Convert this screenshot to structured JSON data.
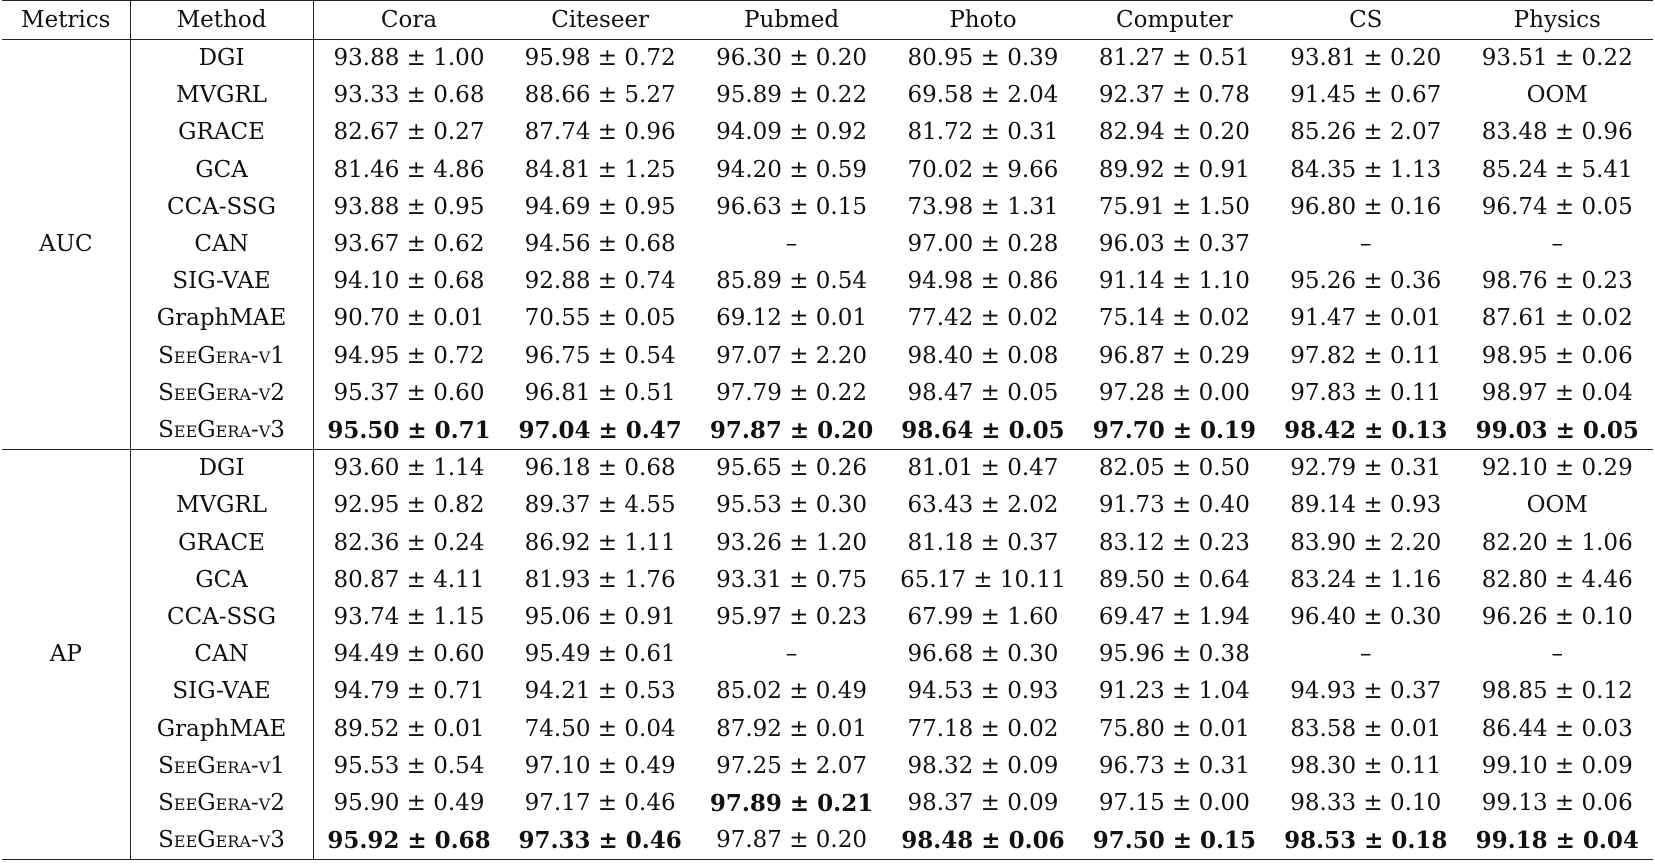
{
  "table": {
    "headers": [
      "Metrics",
      "Method",
      "Cora",
      "Citeseer",
      "Pubmed",
      "Photo",
      "Computer",
      "CS",
      "Physics"
    ],
    "groups": [
      {
        "metric": "AUC",
        "rows": [
          {
            "method": "DGI",
            "values": [
              "93.88 ± 1.00",
              "95.98 ± 0.72",
              "96.30 ± 0.20",
              "80.95 ± 0.39",
              "81.27 ± 0.51",
              "93.81 ± 0.20",
              "93.51 ± 0.22"
            ],
            "bold": []
          },
          {
            "method": "MVGRL",
            "values": [
              "93.33 ± 0.68",
              "88.66 ± 5.27",
              "95.89 ± 0.22",
              "69.58 ± 2.04",
              "92.37 ± 0.78",
              "91.45 ± 0.67",
              "OOM"
            ],
            "bold": []
          },
          {
            "method": "GRACE",
            "values": [
              "82.67 ± 0.27",
              "87.74 ± 0.96",
              "94.09 ± 0.92",
              "81.72 ± 0.31",
              "82.94 ± 0.20",
              "85.26 ± 2.07",
              "83.48 ± 0.96"
            ],
            "bold": []
          },
          {
            "method": "GCA",
            "values": [
              "81.46 ± 4.86",
              "84.81 ± 1.25",
              "94.20 ± 0.59",
              "70.02 ± 9.66",
              "89.92 ± 0.91",
              "84.35 ± 1.13",
              "85.24 ± 5.41"
            ],
            "bold": []
          },
          {
            "method": "CCA-SSG",
            "values": [
              "93.88 ± 0.95",
              "94.69 ± 0.95",
              "96.63 ± 0.15",
              "73.98 ± 1.31",
              "75.91 ± 1.50",
              "96.80 ± 0.16",
              "96.74 ± 0.05"
            ],
            "bold": []
          },
          {
            "method": "CAN",
            "values": [
              "93.67 ± 0.62",
              "94.56 ± 0.68",
              "–",
              "97.00 ± 0.28",
              "96.03 ± 0.37",
              "–",
              "–"
            ],
            "bold": []
          },
          {
            "method": "SIG-VAE",
            "values": [
              "94.10 ± 0.68",
              "92.88 ± 0.74",
              "85.89 ± 0.54",
              "94.98 ± 0.86",
              "91.14 ± 1.10",
              "95.26 ± 0.36",
              "98.76 ± 0.23"
            ],
            "bold": []
          },
          {
            "method": "GraphMAE",
            "values": [
              "90.70 ± 0.01",
              "70.55 ± 0.05",
              "69.12 ± 0.01",
              "77.42 ± 0.02",
              "75.14 ± 0.02",
              "91.47 ± 0.01",
              "87.61 ± 0.02"
            ],
            "bold": []
          },
          {
            "method": "SeeGera-v1",
            "values": [
              "94.95 ± 0.72",
              "96.75 ± 0.54",
              "97.07 ± 2.20",
              "98.40 ± 0.08",
              "96.87 ± 0.29",
              "97.82 ± 0.11",
              "98.95 ± 0.06"
            ],
            "bold": []
          },
          {
            "method": "SeeGera-v2",
            "values": [
              "95.37 ± 0.60",
              "96.81 ± 0.51",
              "97.79 ± 0.22",
              "98.47 ± 0.05",
              "97.28 ± 0.00",
              "97.83 ± 0.11",
              "98.97 ± 0.04"
            ],
            "bold": []
          },
          {
            "method": "SeeGera-v3",
            "values": [
              "95.50 ± 0.71",
              "97.04 ± 0.47",
              "97.87 ± 0.20",
              "98.64 ± 0.05",
              "97.70 ± 0.19",
              "98.42 ± 0.13",
              "99.03 ± 0.05"
            ],
            "bold": [
              0,
              1,
              2,
              3,
              4,
              5,
              6
            ]
          }
        ]
      },
      {
        "metric": "AP",
        "rows": [
          {
            "method": "DGI",
            "values": [
              "93.60 ± 1.14",
              "96.18 ± 0.68",
              "95.65 ± 0.26",
              "81.01 ± 0.47",
              "82.05 ± 0.50",
              "92.79 ± 0.31",
              "92.10 ± 0.29"
            ],
            "bold": []
          },
          {
            "method": "MVGRL",
            "values": [
              "92.95 ± 0.82",
              "89.37 ± 4.55",
              "95.53 ± 0.30",
              "63.43 ± 2.02",
              "91.73 ± 0.40",
              "89.14 ± 0.93",
              "OOM"
            ],
            "bold": []
          },
          {
            "method": "GRACE",
            "values": [
              "82.36 ± 0.24",
              "86.92 ± 1.11",
              "93.26 ± 1.20",
              "81.18 ± 0.37",
              "83.12 ± 0.23",
              "83.90 ± 2.20",
              "82.20 ± 1.06"
            ],
            "bold": []
          },
          {
            "method": "GCA",
            "values": [
              "80.87 ± 4.11",
              "81.93 ± 1.76",
              "93.31 ± 0.75",
              "65.17 ± 10.11",
              "89.50 ± 0.64",
              "83.24 ± 1.16",
              "82.80 ± 4.46"
            ],
            "bold": []
          },
          {
            "method": "CCA-SSG",
            "values": [
              "93.74 ± 1.15",
              "95.06 ± 0.91",
              "95.97 ± 0.23",
              "67.99 ± 1.60",
              "69.47 ± 1.94",
              "96.40 ± 0.30",
              "96.26 ± 0.10"
            ],
            "bold": []
          },
          {
            "method": "CAN",
            "values": [
              "94.49 ± 0.60",
              "95.49 ± 0.61",
              "–",
              "96.68 ± 0.30",
              "95.96 ± 0.38",
              "–",
              "–"
            ],
            "bold": []
          },
          {
            "method": "SIG-VAE",
            "values": [
              "94.79 ± 0.71",
              "94.21 ± 0.53",
              "85.02 ± 0.49",
              "94.53 ± 0.93",
              "91.23 ± 1.04",
              "94.93 ± 0.37",
              "98.85 ± 0.12"
            ],
            "bold": []
          },
          {
            "method": "GraphMAE",
            "values": [
              "89.52 ± 0.01",
              "74.50 ± 0.04",
              "87.92 ± 0.01",
              "77.18 ± 0.02",
              "75.80 ± 0.01",
              "83.58 ± 0.01",
              "86.44 ± 0.03"
            ],
            "bold": []
          },
          {
            "method": "SeeGera-v1",
            "values": [
              "95.53 ± 0.54",
              "97.10 ± 0.49",
              "97.25 ± 2.07",
              "98.32 ± 0.09",
              "96.73 ± 0.31",
              "98.30 ± 0.11",
              "99.10 ± 0.09"
            ],
            "bold": []
          },
          {
            "method": "SeeGera-v2",
            "values": [
              "95.90 ± 0.49",
              "97.17 ± 0.46",
              "97.89 ± 0.21",
              "98.37 ± 0.09",
              "97.15 ± 0.00",
              "98.33 ± 0.10",
              "99.13 ± 0.06"
            ],
            "bold": [
              2
            ]
          },
          {
            "method": "SeeGera-v3",
            "values": [
              "95.92 ± 0.68",
              "97.33 ± 0.46",
              "97.87 ± 0.20",
              "98.48 ± 0.06",
              "97.50 ± 0.15",
              "98.53 ± 0.18",
              "99.18 ± 0.04"
            ],
            "bold": [
              0,
              1,
              3,
              4,
              5,
              6
            ]
          }
        ]
      }
    ]
  }
}
